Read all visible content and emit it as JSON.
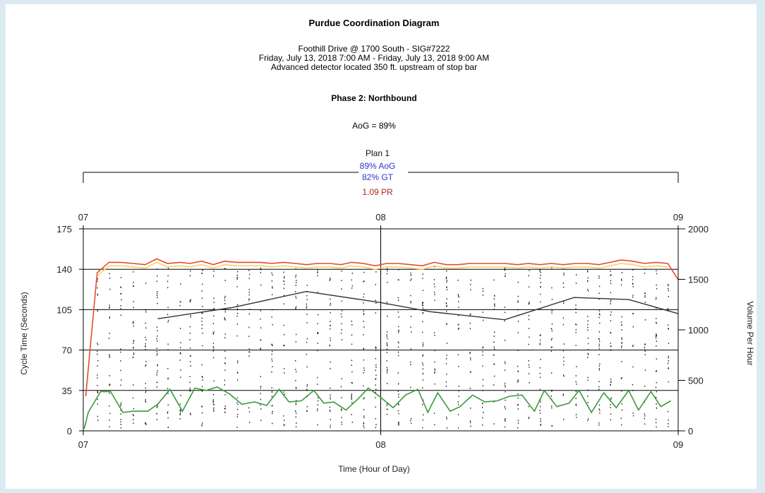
{
  "chart_data": {
    "type": "line",
    "title": "Purdue Coordination Diagram",
    "subtitle_lines": [
      "Foothill Drive @ 1700 South - SIG#7222",
      "Friday, July 13, 2018 7:00 AM - Friday, July 13, 2018 9:00 AM",
      "Advanced detector located 350 ft. upstream of stop bar"
    ],
    "phase_label": "Phase 2: Northbound",
    "aog_summary": "AoG = 89%",
    "plan": {
      "name": "Plan 1",
      "aog": "89% AoG",
      "gt": "82% GT",
      "pr": "1.09 PR",
      "colors": {
        "aog": "#3333cc",
        "gt": "#3333cc",
        "pr": "#aa2222"
      }
    },
    "xlabel": "Time (Hour of Day)",
    "ylabel_left": "Cycle Time (Seconds)",
    "ylabel_right": "Volume Per Hour",
    "x_ticks": [
      "07",
      "08",
      "09"
    ],
    "y_left_ticks": [
      0,
      35,
      70,
      105,
      140,
      175
    ],
    "y_right_ticks": [
      0,
      500,
      1000,
      1500,
      2000
    ],
    "xlim_minutes": [
      0,
      120
    ],
    "ylim_left": [
      0,
      175
    ],
    "ylim_right": [
      0,
      2000
    ],
    "colors": {
      "red": "#e8492a",
      "yellow": "#f4d36a",
      "green": "#3a9a3a",
      "volume": "#333333",
      "detections": "#1a1a1a",
      "grid": "#000000"
    },
    "series": [
      {
        "key": "change_to_red",
        "x_minutes": [
          0.5,
          2.8,
          5.2,
          7.5,
          10.0,
          12.5,
          14.8,
          17.0,
          19.5,
          21.5,
          23.9,
          26.2,
          28.5,
          31.0,
          33.4,
          35.7,
          38.0,
          40.4,
          42.8,
          45.0,
          47.2,
          49.7,
          52.0,
          54.1,
          56.5,
          58.9,
          61.2,
          63.5,
          66.0,
          68.4,
          70.8,
          73.2,
          75.6,
          78.0,
          80.5,
          82.8,
          85.0,
          87.6,
          89.8,
          92.1,
          94.4,
          96.8,
          99.3,
          101.7,
          104.0,
          106.3,
          108.5,
          110.8,
          113.2,
          115.5,
          117.9,
          120.0
        ],
        "y_seconds": [
          30,
          137,
          146,
          146,
          145,
          144,
          149,
          145,
          146,
          145,
          147,
          144,
          147,
          146,
          146,
          146,
          145,
          146,
          145,
          144,
          145,
          145,
          144,
          146,
          145,
          143,
          145,
          145,
          144,
          143,
          146,
          144,
          144,
          145,
          145,
          145,
          145,
          144,
          145,
          144,
          145,
          144,
          145,
          145,
          144,
          146,
          148,
          147,
          145,
          146,
          145,
          131
        ]
      },
      {
        "key": "change_to_yellow",
        "x_minutes": [
          2.8,
          5.2,
          7.5,
          10.0,
          12.5,
          14.8,
          17.0,
          19.5,
          21.5,
          23.9,
          26.2,
          28.5,
          31.0,
          33.4,
          35.7,
          38.0,
          40.4,
          42.8,
          45.0,
          47.2,
          49.7,
          52.0,
          54.1,
          56.5,
          58.9,
          61.2,
          63.5,
          66.0,
          68.4,
          70.8,
          73.2,
          75.6,
          78.0,
          80.5,
          82.8,
          85.0,
          87.6,
          89.8,
          92.1,
          94.4,
          96.8,
          99.3,
          101.7,
          104.0,
          106.3,
          108.5,
          110.8,
          113.2,
          115.5,
          117.9
        ],
        "y_seconds": [
          134,
          143,
          143,
          142,
          141,
          146,
          142,
          143,
          142,
          144,
          141,
          144,
          143,
          143,
          143,
          142,
          143,
          142,
          141,
          142,
          142,
          141,
          143,
          142,
          140,
          142,
          142,
          141,
          140,
          143,
          141,
          141,
          142,
          142,
          142,
          142,
          141,
          142,
          141,
          142,
          141,
          142,
          142,
          141,
          143,
          145,
          144,
          142,
          143,
          142
        ]
      },
      {
        "key": "change_to_green",
        "x_minutes": [
          0.2,
          1.0,
          3.5,
          5.5,
          8.0,
          10.0,
          13.0,
          15.0,
          17.5,
          20.0,
          22.5,
          24.8,
          27.0,
          29.5,
          32.0,
          34.5,
          37.0,
          39.5,
          41.5,
          44.0,
          46.5,
          48.5,
          50.5,
          53.0,
          55.5,
          57.5,
          60.0,
          62.5,
          65.0,
          67.5,
          69.5,
          71.5,
          74.0,
          76.0,
          78.5,
          81.0,
          83.5,
          86.0,
          88.5,
          91.0,
          93.0,
          95.5,
          98.0,
          100.0,
          102.5,
          105.0,
          107.5,
          110.0,
          112.0,
          114.5,
          116.5,
          118.5
        ],
        "y_seconds": [
          2,
          16,
          34,
          34,
          16,
          17,
          17,
          23,
          36,
          17,
          37,
          35,
          38,
          32,
          23,
          25,
          22,
          36,
          25,
          26,
          35,
          24,
          25,
          18,
          28,
          37,
          29,
          20,
          31,
          36,
          16,
          33,
          17,
          21,
          31,
          25,
          26,
          30,
          31,
          17,
          35,
          21,
          24,
          35,
          16,
          33,
          20,
          35,
          18,
          34,
          21,
          26
        ]
      }
    ],
    "volume_per_hour": {
      "x_minutes": [
        15,
        45,
        85,
        105,
        120
      ],
      "values": [
        1120,
        1380,
        1100,
        1320,
        1150
      ],
      "approx_values": {
        "x_minutes": [
          15,
          30,
          45,
          60,
          70,
          85,
          99,
          110,
          120
        ],
        "values": [
          1110,
          1220,
          1380,
          1270,
          1180,
          1100,
          1320,
          1300,
          1160
        ]
      }
    }
  }
}
